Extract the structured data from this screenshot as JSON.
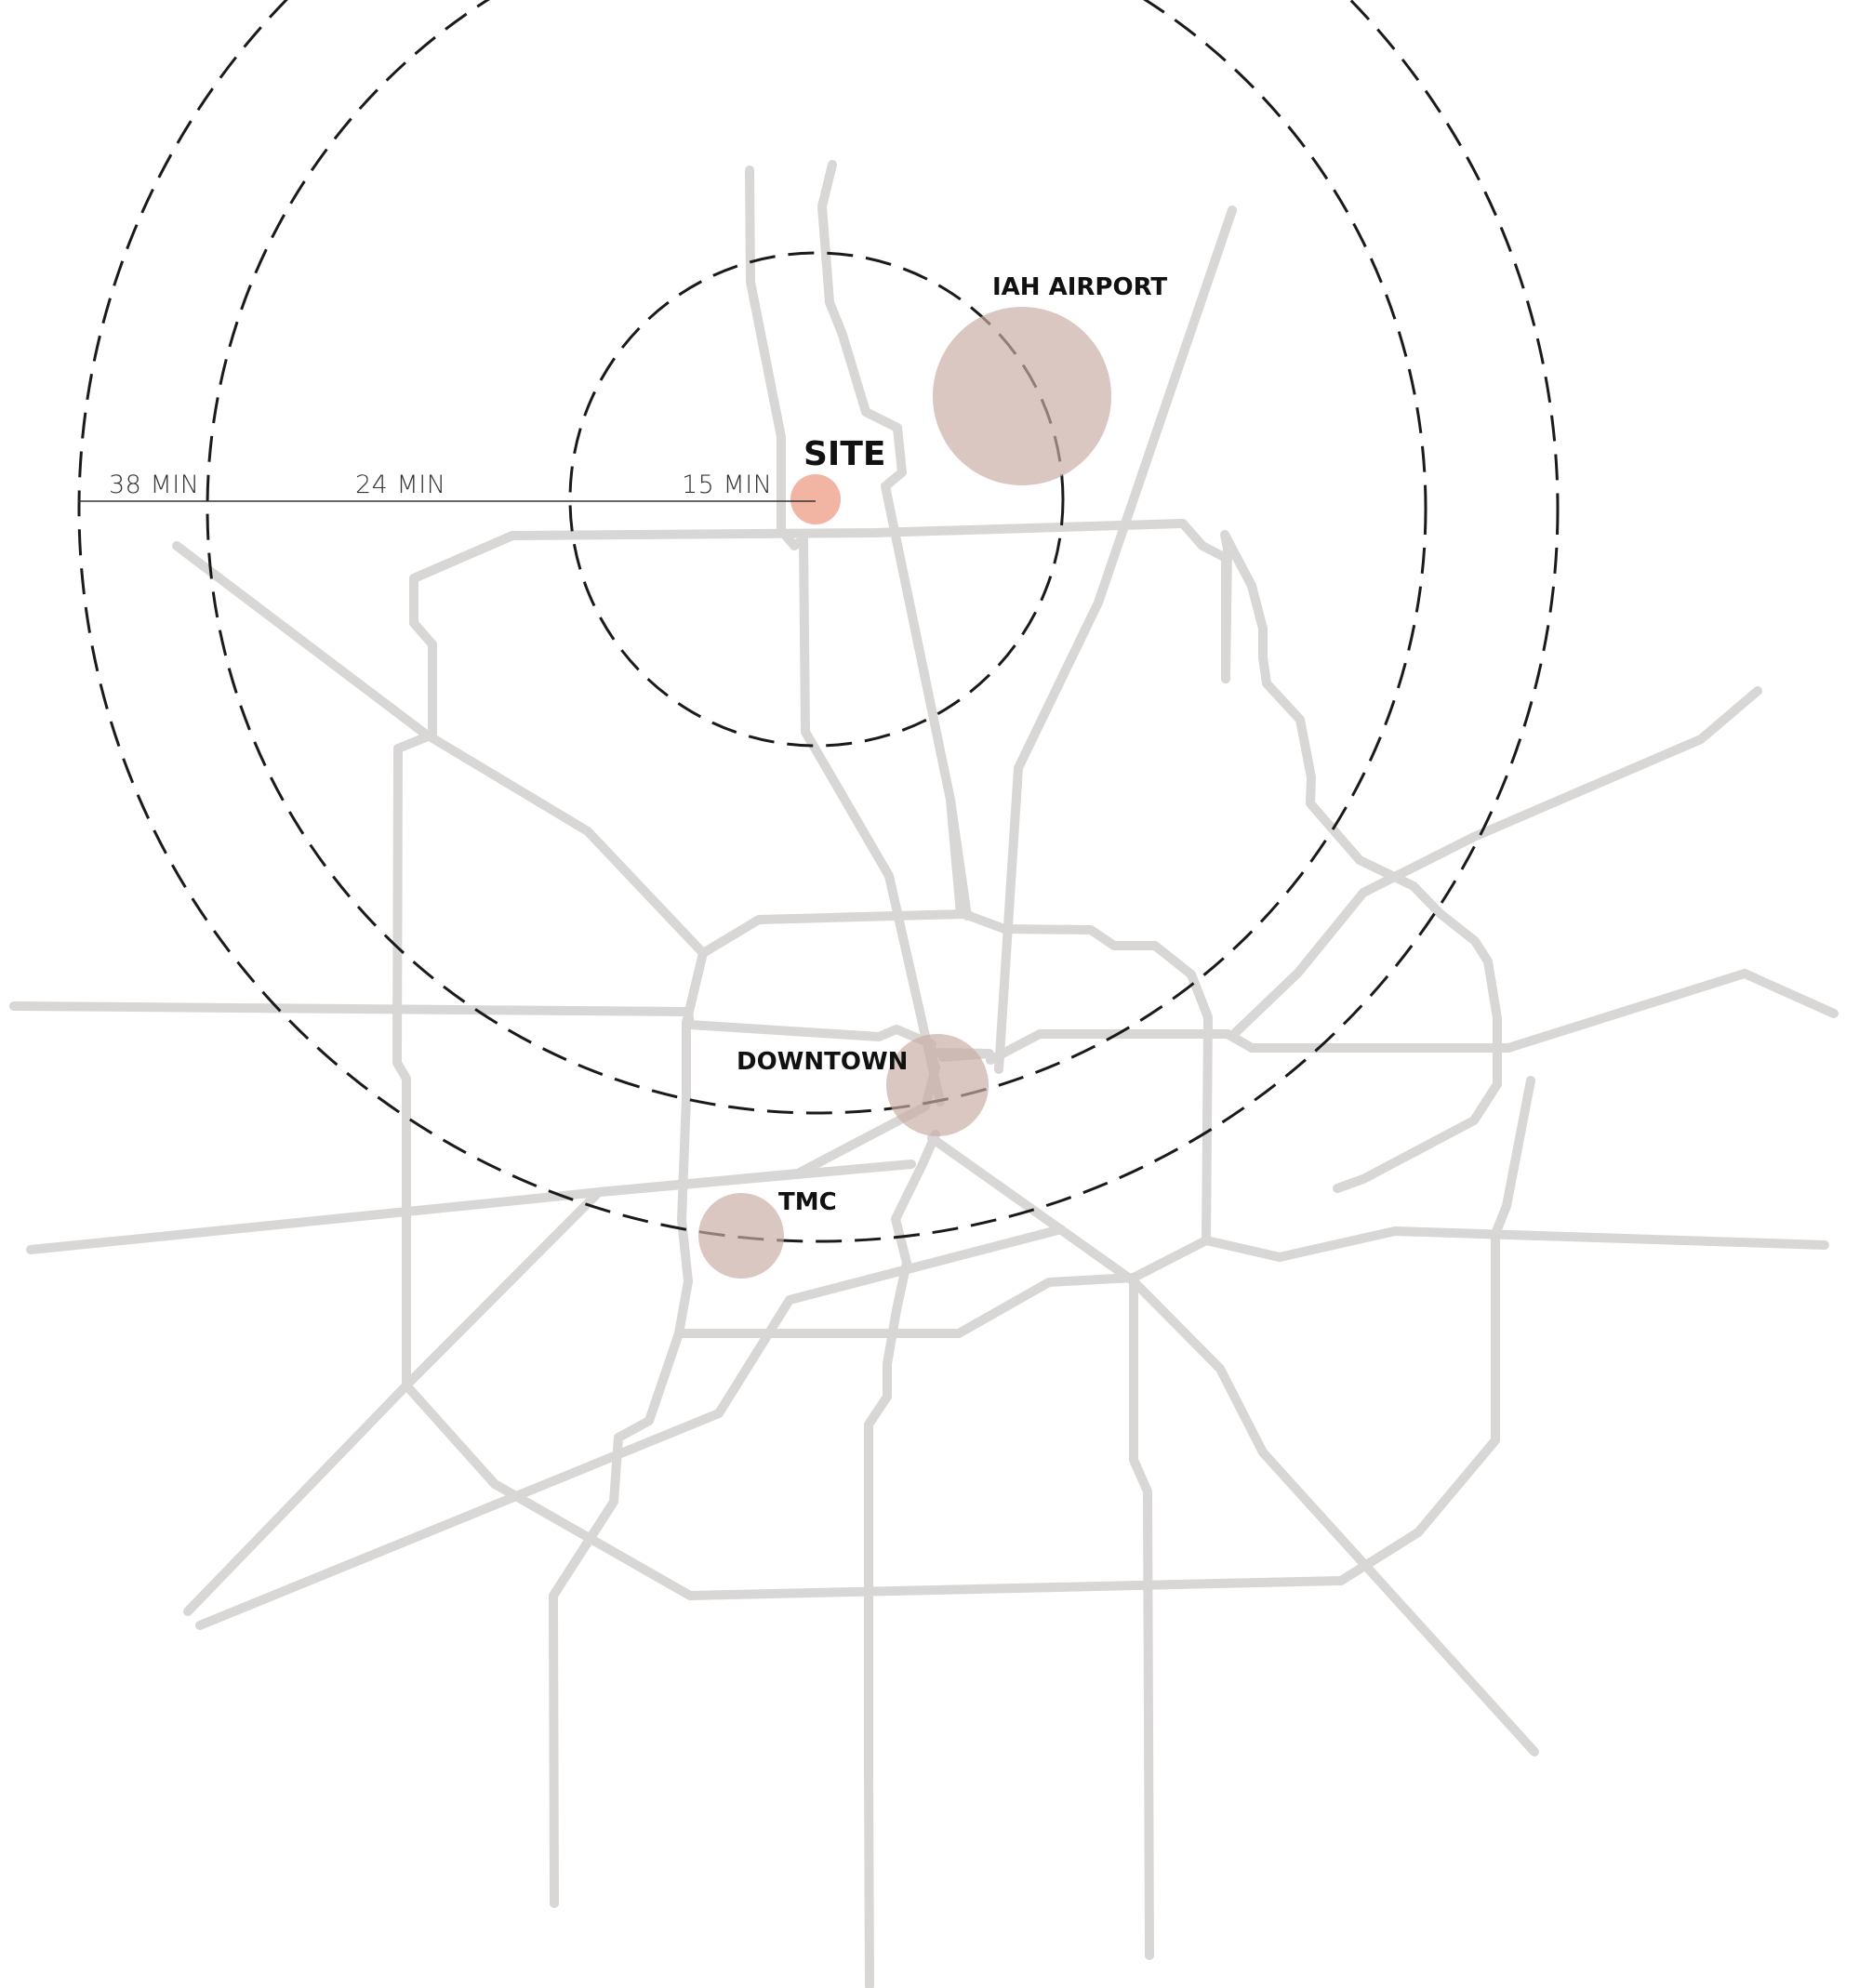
{
  "site": {
    "label": "SITE"
  },
  "travel_rings": [
    {
      "label": "15 MIN"
    },
    {
      "label": "24 MIN"
    },
    {
      "label": "38 MIN"
    }
  ],
  "places": [
    {
      "label": "IAH AIRPORT"
    },
    {
      "label": "DOWNTOWN"
    },
    {
      "label": "TMC"
    }
  ],
  "colors": {
    "road": "#d8d7d6",
    "ring": "#1a1a1a",
    "poi_fill": "#c9aca3",
    "site_fill": "#f2b4a3",
    "label": "#111111"
  }
}
